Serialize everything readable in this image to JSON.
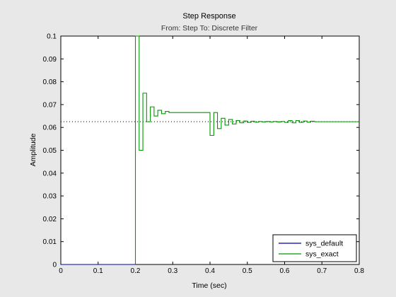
{
  "chart_data": {
    "type": "line",
    "title": "Step Response",
    "subtitle": "From: Step  To: Discrete Filter",
    "xlabel": "Time (sec)",
    "ylabel": "Amplitude",
    "xlim": [
      0,
      0.8
    ],
    "ylim": [
      0,
      0.1
    ],
    "xticks": [
      0,
      0.1,
      0.2,
      0.3,
      0.4,
      0.5,
      0.6,
      0.7,
      0.8
    ],
    "xtick_labels": [
      "0",
      "0.1",
      "0.2",
      "0.3",
      "0.4",
      "0.5",
      "0.6",
      "0.7",
      "0.8"
    ],
    "yticks": [
      0,
      0.01,
      0.02,
      0.03,
      0.04,
      0.05,
      0.06,
      0.07,
      0.08,
      0.09,
      0.1
    ],
    "ytick_labels": [
      "0",
      "0.01",
      "0.02",
      "0.03",
      "0.04",
      "0.05",
      "0.06",
      "0.07",
      "0.08",
      "0.09",
      "0.1"
    ],
    "steady_state": 0.0625,
    "legend_position": "bottom-right",
    "series": [
      {
        "name": "sys_default",
        "color": "#0000aa",
        "style": "step",
        "x": [
          0,
          0.2
        ],
        "y": [
          0,
          0
        ]
      },
      {
        "name": "sys_exact",
        "color": "#009900",
        "style": "step",
        "x": [
          0,
          0.2,
          0.21,
          0.22,
          0.23,
          0.24,
          0.25,
          0.26,
          0.27,
          0.28,
          0.29,
          0.3,
          0.31,
          0.32,
          0.33,
          0.34,
          0.35,
          0.36,
          0.37,
          0.38,
          0.39,
          0.4,
          0.41,
          0.42,
          0.43,
          0.44,
          0.45,
          0.46,
          0.47,
          0.48,
          0.49,
          0.5,
          0.51,
          0.52,
          0.53,
          0.54,
          0.55,
          0.56,
          0.57,
          0.58,
          0.59,
          0.6,
          0.61,
          0.62,
          0.63,
          0.64,
          0.65,
          0.66,
          0.67,
          0.68,
          0.8
        ],
        "y": [
          0,
          0.1,
          0.05,
          0.075,
          0.0625,
          0.069,
          0.065,
          0.0675,
          0.066,
          0.067,
          0.0665,
          0.0665,
          0.0665,
          0.0665,
          0.0665,
          0.0665,
          0.0665,
          0.0665,
          0.0665,
          0.0665,
          0.0665,
          0.0565,
          0.0665,
          0.0595,
          0.064,
          0.061,
          0.0635,
          0.0615,
          0.063,
          0.062,
          0.0628,
          0.0622,
          0.0627,
          0.0623,
          0.0626,
          0.0624,
          0.0626,
          0.0624,
          0.0626,
          0.0624,
          0.0626,
          0.0622,
          0.063,
          0.062,
          0.063,
          0.0622,
          0.0628,
          0.0623,
          0.0627,
          0.0625,
          0.0625
        ]
      }
    ]
  }
}
